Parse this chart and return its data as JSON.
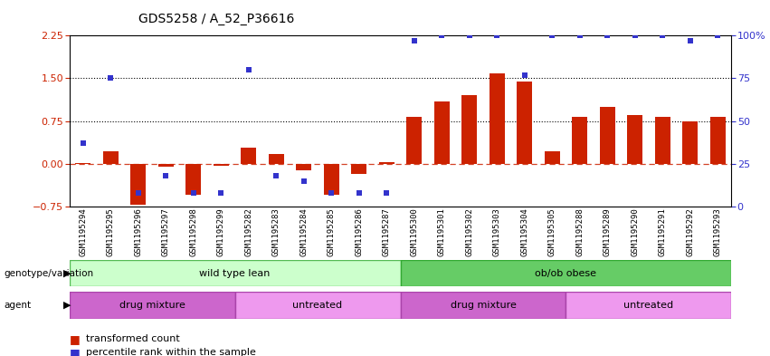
{
  "title": "GDS5258 / A_52_P36616",
  "samples": [
    "GSM1195294",
    "GSM1195295",
    "GSM1195296",
    "GSM1195297",
    "GSM1195298",
    "GSM1195299",
    "GSM1195282",
    "GSM1195283",
    "GSM1195284",
    "GSM1195285",
    "GSM1195286",
    "GSM1195287",
    "GSM1195300",
    "GSM1195301",
    "GSM1195302",
    "GSM1195303",
    "GSM1195304",
    "GSM1195305",
    "GSM1195288",
    "GSM1195289",
    "GSM1195290",
    "GSM1195291",
    "GSM1195292",
    "GSM1195293"
  ],
  "bar_values": [
    0.01,
    0.22,
    -0.72,
    -0.05,
    -0.55,
    -0.04,
    0.28,
    0.17,
    -0.12,
    -0.55,
    -0.18,
    0.03,
    0.82,
    1.1,
    1.2,
    1.58,
    1.45,
    0.22,
    0.82,
    1.0,
    0.85,
    0.82,
    0.75,
    0.82
  ],
  "percentile_values": [
    37,
    75,
    8,
    18,
    8,
    8,
    80,
    18,
    15,
    8,
    8,
    8,
    97,
    100,
    100,
    100,
    77,
    100,
    100,
    100,
    100,
    100,
    97,
    100
  ],
  "ylim_left": [
    -0.75,
    2.25
  ],
  "ylim_right": [
    0,
    100
  ],
  "yticks_left": [
    -0.75,
    0.0,
    0.75,
    1.5,
    2.25
  ],
  "yticks_right": [
    0,
    25,
    50,
    75,
    100
  ],
  "hlines": [
    0.75,
    1.5
  ],
  "bar_color": "#cc2200",
  "dot_color": "#3333cc",
  "zero_line_color": "#cc2200",
  "bg_color": "#f0f0f0",
  "geno_wild_color": "#ccffcc",
  "geno_wild_edge": "#55bb55",
  "geno_ob_color": "#66cc66",
  "geno_ob_edge": "#33aa33",
  "agent_drug_color": "#cc66cc",
  "agent_untreated_color": "#ee99ee",
  "agent_edge_color": "#aa44aa"
}
